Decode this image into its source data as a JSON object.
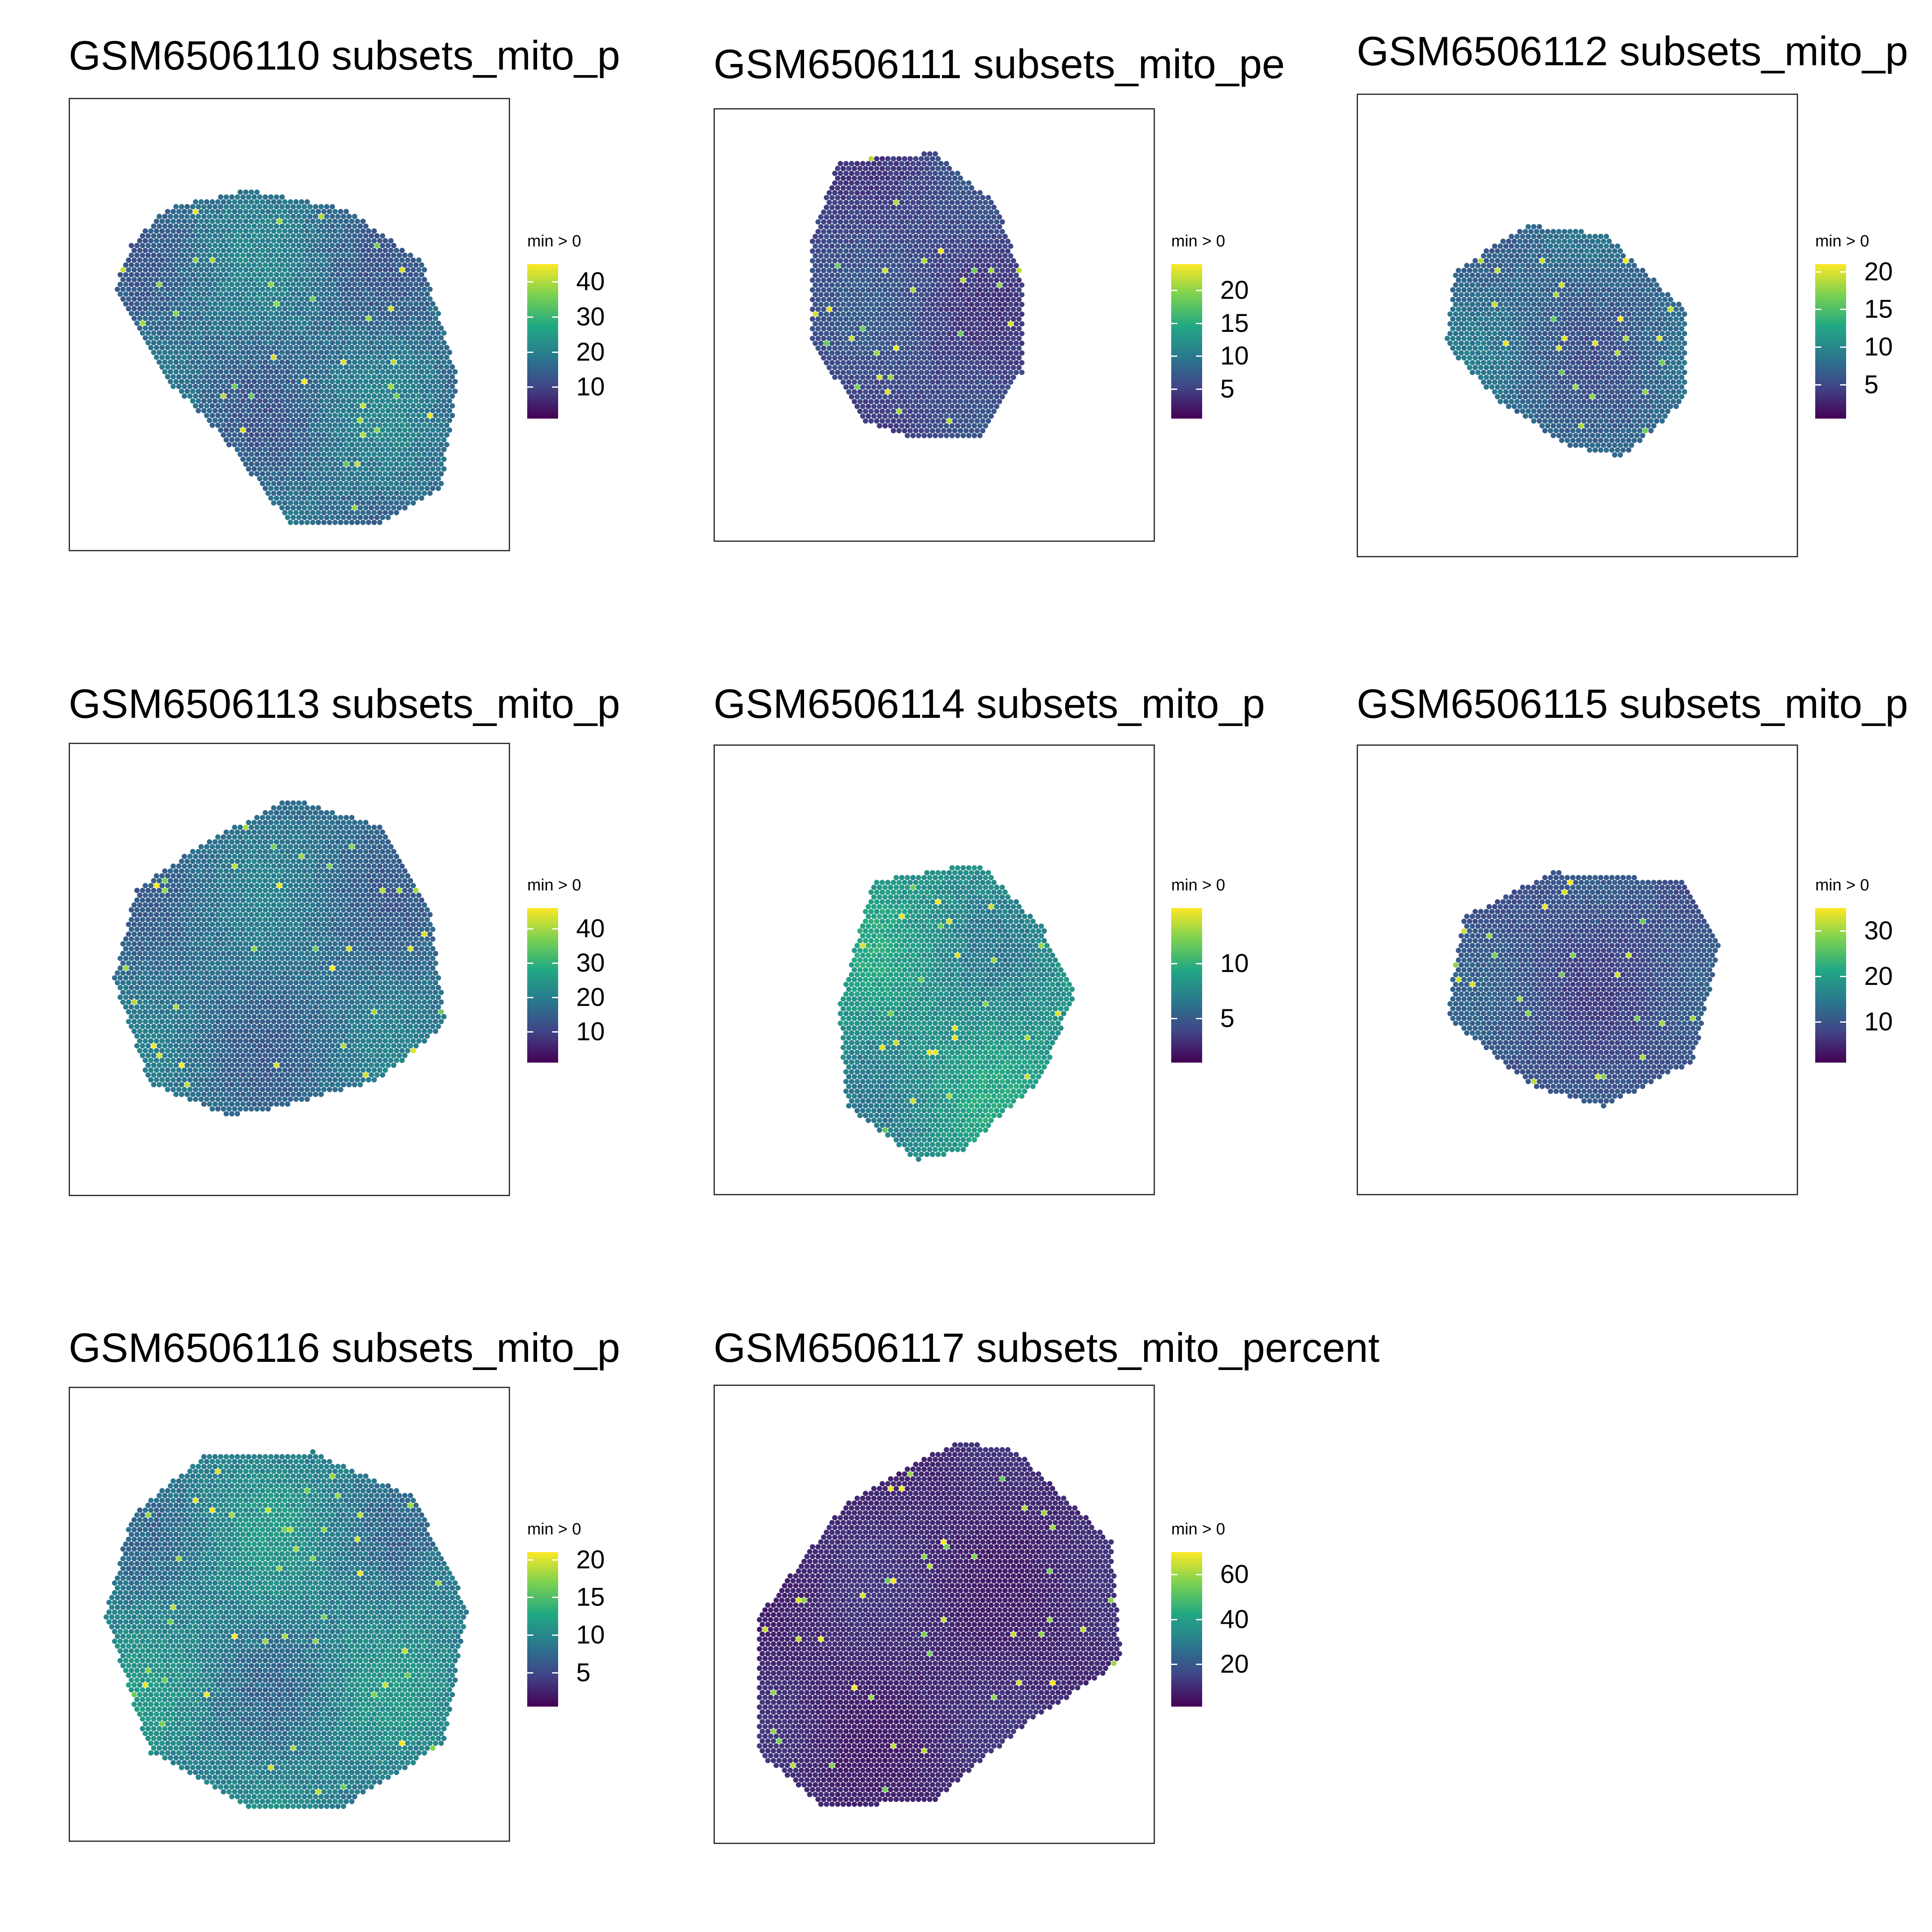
{
  "chart_data": [
    {
      "type": "spatial_scatter",
      "title": "GSM6506110 subsets_mito_p",
      "legend": {
        "title": "min > 0",
        "ticks": [
          10,
          20,
          30,
          40
        ],
        "range": [
          1,
          45
        ],
        "colormap": "viridis"
      },
      "base": 0.22,
      "spread": 0.28
    },
    {
      "type": "spatial_scatter",
      "title": "GSM6506111 subsets_mito_pе",
      "legend": {
        "title": "min > 0",
        "ticks": [
          5,
          10,
          15,
          20
        ],
        "range": [
          0.5,
          24
        ],
        "colormap": "viridis"
      },
      "base": 0.12,
      "spread": 0.2
    },
    {
      "type": "spatial_scatter",
      "title": "GSM6506112 subsets_mito_p",
      "legend": {
        "title": "min > 0",
        "ticks": [
          5,
          10,
          15,
          20
        ],
        "range": [
          0.5,
          21
        ],
        "colormap": "viridis"
      },
      "base": 0.2,
      "spread": 0.25
    },
    {
      "type": "spatial_scatter",
      "title": "GSM6506113 subsets_mito_p",
      "legend": {
        "title": "min > 0",
        "ticks": [
          10,
          20,
          30,
          40
        ],
        "range": [
          1,
          46
        ],
        "colormap": "viridis"
      },
      "base": 0.25,
      "spread": 0.22
    },
    {
      "type": "spatial_scatter",
      "title": "GSM6506114 subsets_mito_p",
      "legend": {
        "title": "min > 0",
        "ticks": [
          5,
          10
        ],
        "range": [
          1,
          15
        ],
        "colormap": "viridis"
      },
      "base": 0.35,
      "spread": 0.3
    },
    {
      "type": "spatial_scatter",
      "title": "GSM6506115 subsets_mito_p",
      "legend": {
        "title": "min > 0",
        "ticks": [
          10,
          20,
          30
        ],
        "range": [
          1,
          35
        ],
        "colormap": "viridis"
      },
      "base": 0.15,
      "spread": 0.2
    },
    {
      "type": "spatial_scatter",
      "title": "GSM6506116 subsets_mito_p",
      "legend": {
        "title": "min > 0",
        "ticks": [
          5,
          10,
          15,
          20
        ],
        "range": [
          0.5,
          21
        ],
        "colormap": "viridis"
      },
      "base": 0.28,
      "spread": 0.3
    },
    {
      "type": "spatial_scatter",
      "title": "GSM6506117 subsets_mito_percent",
      "legend": {
        "title": "min > 0",
        "ticks": [
          20,
          40,
          60
        ],
        "range": [
          1,
          70
        ],
        "colormap": "viridis"
      },
      "base": 0.06,
      "spread": 0.12
    }
  ]
}
